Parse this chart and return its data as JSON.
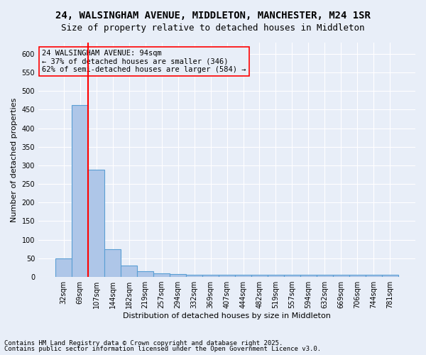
{
  "title1": "24, WALSINGHAM AVENUE, MIDDLETON, MANCHESTER, M24 1SR",
  "title2": "Size of property relative to detached houses in Middleton",
  "xlabel": "Distribution of detached houses by size in Middleton",
  "ylabel": "Number of detached properties",
  "categories": [
    "32sqm",
    "69sqm",
    "107sqm",
    "144sqm",
    "182sqm",
    "219sqm",
    "257sqm",
    "294sqm",
    "332sqm",
    "369sqm",
    "407sqm",
    "444sqm",
    "482sqm",
    "519sqm",
    "557sqm",
    "594sqm",
    "632sqm",
    "669sqm",
    "706sqm",
    "744sqm",
    "781sqm"
  ],
  "bar_values": [
    50,
    462,
    288,
    75,
    30,
    15,
    10,
    7,
    5,
    5,
    5,
    5,
    5,
    5,
    5,
    5,
    5,
    5,
    5,
    5,
    5
  ],
  "bar_color": "#aec6e8",
  "bar_edge_color": "#5a9fd4",
  "vline_pos": 1.5,
  "vline_color": "red",
  "annotation_text": "24 WALSINGHAM AVENUE: 94sqm\n← 37% of detached houses are smaller (346)\n62% of semi-detached houses are larger (584) →",
  "ylim": [
    0,
    630
  ],
  "yticks": [
    0,
    50,
    100,
    150,
    200,
    250,
    300,
    350,
    400,
    450,
    500,
    550,
    600
  ],
  "bg_color": "#e8eef8",
  "footer1": "Contains HM Land Registry data © Crown copyright and database right 2025.",
  "footer2": "Contains public sector information licensed under the Open Government Licence v3.0.",
  "grid_color": "#ffffff",
  "title_fontsize": 10,
  "subtitle_fontsize": 9,
  "axis_label_fontsize": 8,
  "tick_fontsize": 7,
  "annotation_fontsize": 7.5,
  "footer_fontsize": 6.5
}
